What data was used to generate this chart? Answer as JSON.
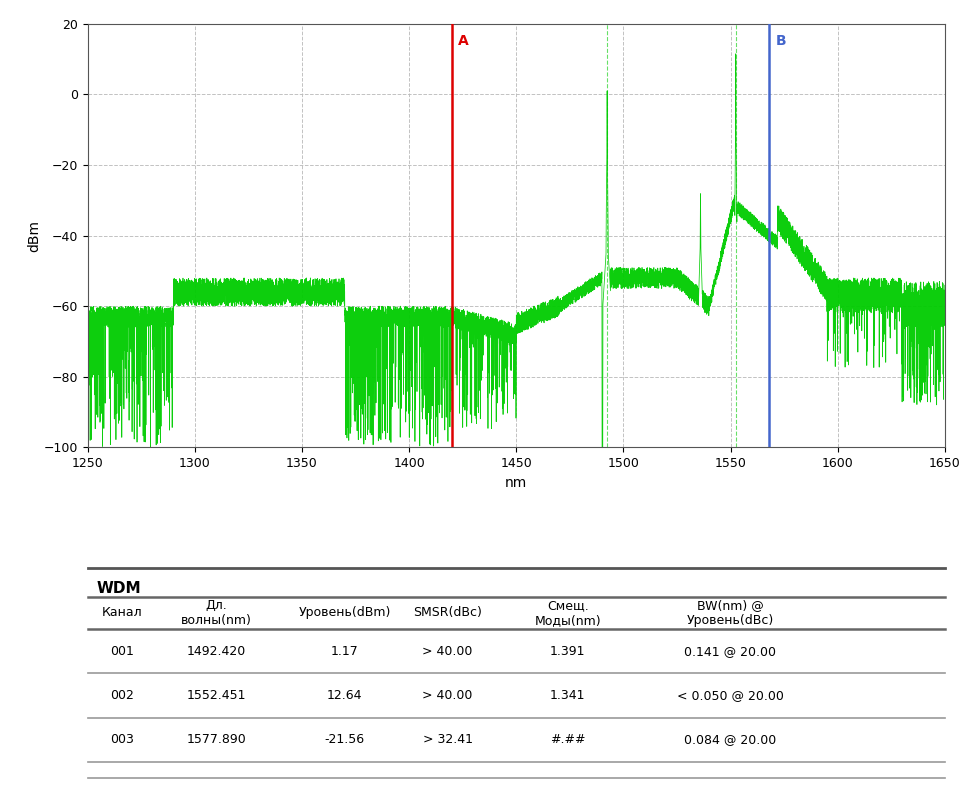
{
  "xlim": [
    1250,
    1650
  ],
  "ylim": [
    -100,
    20
  ],
  "xlabel": "nm",
  "ylabel": "dBm",
  "yticks": [
    20,
    0,
    -20,
    -40,
    -60,
    -80,
    -100
  ],
  "xticks": [
    1250,
    1300,
    1350,
    1400,
    1450,
    1500,
    1550,
    1600,
    1650
  ],
  "grid_color": "#bbbbbb",
  "plot_color": "#00cc00",
  "bg_color": "#ffffff",
  "red_line_x": 1420,
  "blue_line_x": 1568,
  "red_line_color": "#dd0000",
  "blue_line_color": "#4466cc",
  "red_label": "A",
  "blue_label": "B",
  "wdm_title": "WDM",
  "table_headers": [
    "Канал",
    "Дл.\nволны(nm)",
    "Уровень(dBm)",
    "SMSR(dBc)",
    "Смещ.\nМоды(nm)",
    "BW(nm) @\nУровень(dBc)"
  ],
  "table_data": [
    [
      "001",
      "1492.420",
      "1.17",
      "> 40.00",
      "1.391",
      "0.141 @ 20.00"
    ],
    [
      "002",
      "1552.451",
      "12.64",
      "> 40.00",
      "1.341",
      "< 0.050 @ 20.00"
    ],
    [
      "003",
      "1577.890",
      "-21.56",
      "> 32.41",
      "#.##",
      "0.084 @ 20.00"
    ]
  ],
  "peak1_x": 1492.42,
  "peak1_y": 1.17,
  "peak2_x": 1552.451,
  "peak2_y": 12.64,
  "peak3_x": 1552.0,
  "peak3_y": 12.0
}
